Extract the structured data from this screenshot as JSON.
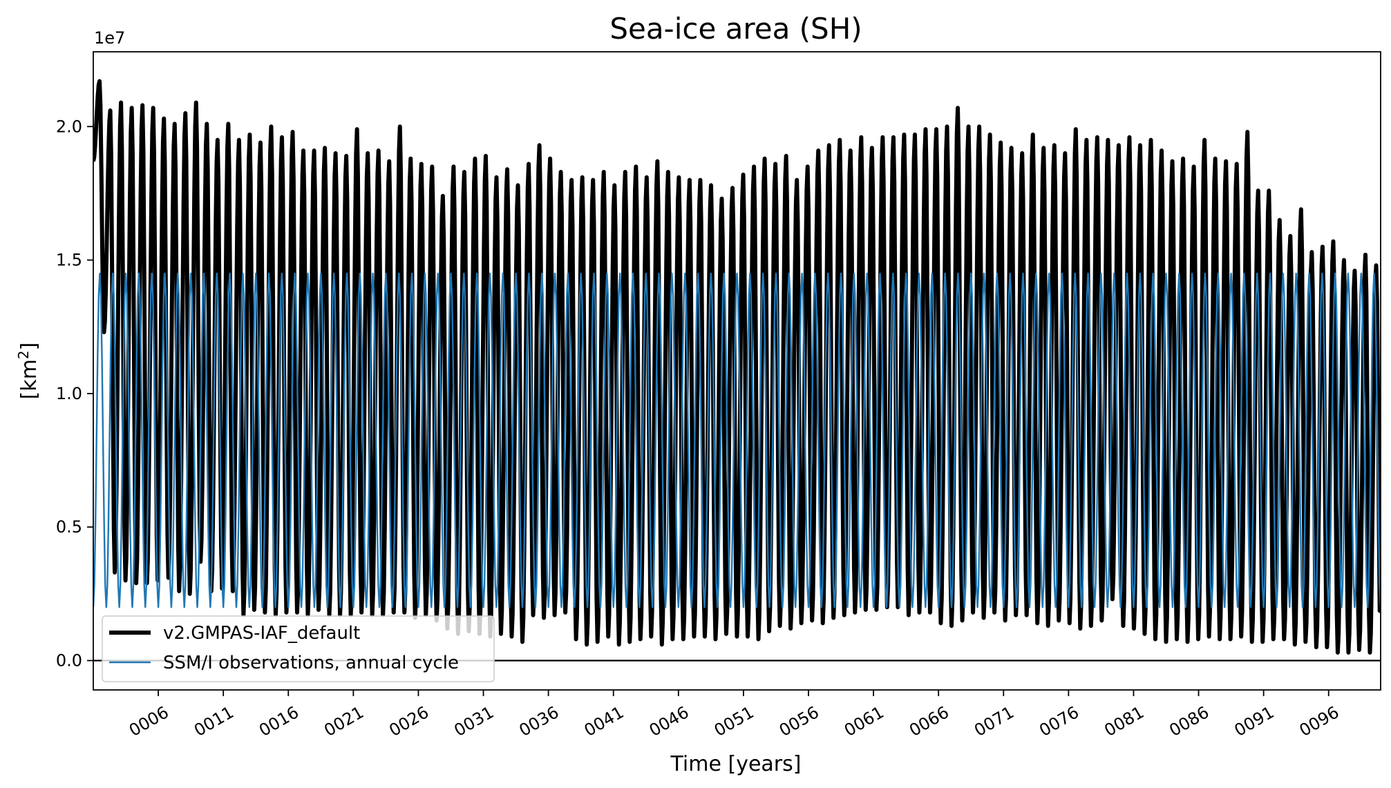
{
  "chart_data": {
    "type": "line",
    "title": "Sea-ice area (SH)",
    "xlabel": "Time [years]",
    "ylabel_main": "[km",
    "ylabel_sup": "2",
    "ylabel_end": "]",
    "y_offset_label": "1e7",
    "y_scale": 10000000,
    "xlim": [
      1.0,
      100.0
    ],
    "ylim": [
      -1100000,
      22800000
    ],
    "y_ticks": [
      0,
      5000000,
      10000000,
      15000000,
      20000000
    ],
    "y_tick_labels": [
      "0.0",
      "0.5",
      "1.0",
      "1.5",
      "2.0"
    ],
    "x_ticks": [
      6,
      11,
      16,
      21,
      26,
      31,
      36,
      41,
      46,
      51,
      56,
      61,
      66,
      71,
      76,
      81,
      86,
      91,
      96
    ],
    "x_tick_labels": [
      "0006",
      "0011",
      "0016",
      "0021",
      "0026",
      "0031",
      "0036",
      "0041",
      "0046",
      "0051",
      "0056",
      "0061",
      "0066",
      "0071",
      "0076",
      "0081",
      "0086",
      "0091",
      "0096"
    ],
    "zero_line": 0,
    "series": [
      {
        "name": "v2.GMPAS-IAF_default",
        "color": "#000000",
        "kind": "annual_max_min",
        "annual_max": [
          21700000,
          20600000,
          20900000,
          20700000,
          20800000,
          20700000,
          20300000,
          20100000,
          20500000,
          20900000,
          20100000,
          19500000,
          20100000,
          19500000,
          19700000,
          19400000,
          20000000,
          19600000,
          19800000,
          19100000,
          19100000,
          19200000,
          19000000,
          18900000,
          19900000,
          19000000,
          19100000,
          18700000,
          20000000,
          18800000,
          18600000,
          18500000,
          17400000,
          18500000,
          18300000,
          18800000,
          18900000,
          18100000,
          18400000,
          17800000,
          18600000,
          19300000,
          18800000,
          18300000,
          18000000,
          18100000,
          18000000,
          18300000,
          17800000,
          18300000,
          18500000,
          18100000,
          18700000,
          18300000,
          18100000,
          18000000,
          18000000,
          17800000,
          17300000,
          17700000,
          18200000,
          18500000,
          18800000,
          18600000,
          18900000,
          18000000,
          18500000,
          19100000,
          19300000,
          19500000,
          19100000,
          19600000,
          19200000,
          19600000,
          19600000,
          19700000,
          19700000,
          19900000,
          19900000,
          20000000,
          20700000,
          20000000,
          20000000,
          19700000,
          19400000,
          19200000,
          19000000,
          19700000,
          19200000,
          19300000,
          19000000,
          19900000,
          19500000,
          19600000,
          19500000,
          19300000,
          19600000,
          19300000,
          19500000,
          19100000,
          18700000,
          18800000,
          18500000,
          19500000,
          18800000,
          18700000,
          18600000,
          19800000,
          17600000,
          17600000,
          16500000,
          15900000,
          16900000,
          15300000,
          15500000,
          15700000,
          15000000,
          14600000,
          15200000,
          14800000
        ],
        "annual_min": [
          12300000,
          3300000,
          3000000,
          2900000,
          2900000,
          3000000,
          3100000,
          2600000,
          2500000,
          3700000,
          2600000,
          2700000,
          2600000,
          1700000,
          1900000,
          1800000,
          1700000,
          1800000,
          1800000,
          1700000,
          1900000,
          1700000,
          1700000,
          1700000,
          1800000,
          1700000,
          1700000,
          1800000,
          1800000,
          1600000,
          1700000,
          1500000,
          1200000,
          1000000,
          1100000,
          1000000,
          900000,
          1000000,
          900000,
          700000,
          1700000,
          1600000,
          1700000,
          1800000,
          800000,
          600000,
          700000,
          900000,
          600000,
          700000,
          800000,
          900000,
          600000,
          800000,
          800000,
          900000,
          900000,
          800000,
          1000000,
          900000,
          900000,
          800000,
          1100000,
          1300000,
          1200000,
          1400000,
          1500000,
          1400000,
          1600000,
          1700000,
          1800000,
          1900000,
          1900000,
          2000000,
          2000000,
          1700000,
          1800000,
          1800000,
          1400000,
          1300000,
          1500000,
          1800000,
          1600000,
          1800000,
          1500000,
          1700000,
          1700000,
          1400000,
          1300000,
          1500000,
          1400000,
          1200000,
          1300000,
          1500000,
          2300000,
          1300000,
          1200000,
          1000000,
          800000,
          700000,
          800000,
          700000,
          800000,
          900000,
          800000,
          800000,
          900000,
          700000,
          700000,
          800000,
          800000,
          600000,
          700000,
          500000,
          500000,
          300000,
          300000,
          400000,
          300000,
          500000
        ],
        "first_year_start": 18700000,
        "final_value": 5800000
      },
      {
        "name": "SSM/I observations, annual cycle",
        "color": "#1f77b4",
        "kind": "annual_cycle",
        "cycle_max": 14500000,
        "cycle_min": 2000000,
        "start_value": 2000000
      }
    ],
    "legend": {
      "location": "lower-left",
      "entries": [
        "v2.GMPAS-IAF_default",
        "SSM/I observations, annual cycle"
      ]
    }
  }
}
